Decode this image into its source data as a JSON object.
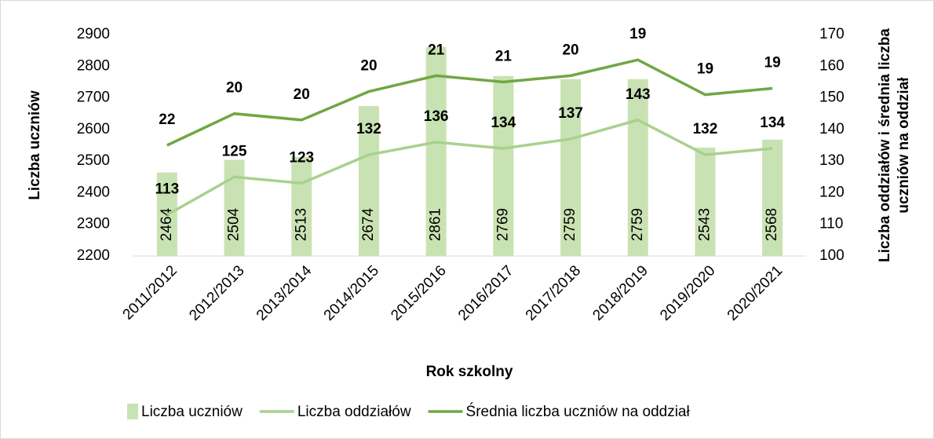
{
  "chart_data": {
    "type": "bar-line",
    "x_label": "Rok szkolny",
    "y_label": "Liczba uczniów",
    "y2_label": "Liczba oddziałów i średnia liczba uczniów na oddział",
    "categories": [
      "2011/2012",
      "2012/2013",
      "2013/2014",
      "2014/2015",
      "2015/2016",
      "2016/2017",
      "2017/2018",
      "2018/2019",
      "2019/2020",
      "2020/2021"
    ],
    "series": [
      {
        "name": "Liczba uczniów",
        "type": "bar",
        "color": "#c9e2b3",
        "values": [
          2464,
          2504,
          2513,
          2674,
          2861,
          2769,
          2759,
          2759,
          2543,
          2568
        ]
      },
      {
        "name": "Liczba oddziałów",
        "type": "line",
        "axis": "y2",
        "stacked": true,
        "color": "#a9d18e",
        "values": [
          113,
          125,
          123,
          132,
          136,
          134,
          137,
          143,
          132,
          134
        ]
      },
      {
        "name": "Średnia liczba uczniów na oddział",
        "type": "line",
        "axis": "y2",
        "stacked": true,
        "color": "#70a743",
        "values": [
          22,
          20,
          20,
          20,
          21,
          21,
          20,
          19,
          19,
          19
        ]
      }
    ],
    "ylim": [
      2200,
      2900
    ],
    "yticks": [
      2200,
      2300,
      2400,
      2500,
      2600,
      2700,
      2800,
      2900
    ],
    "y2lim": [
      100,
      170
    ],
    "y2ticks": [
      100,
      110,
      120,
      130,
      140,
      150,
      160,
      170
    ],
    "grid": false,
    "legend": "bottom"
  }
}
